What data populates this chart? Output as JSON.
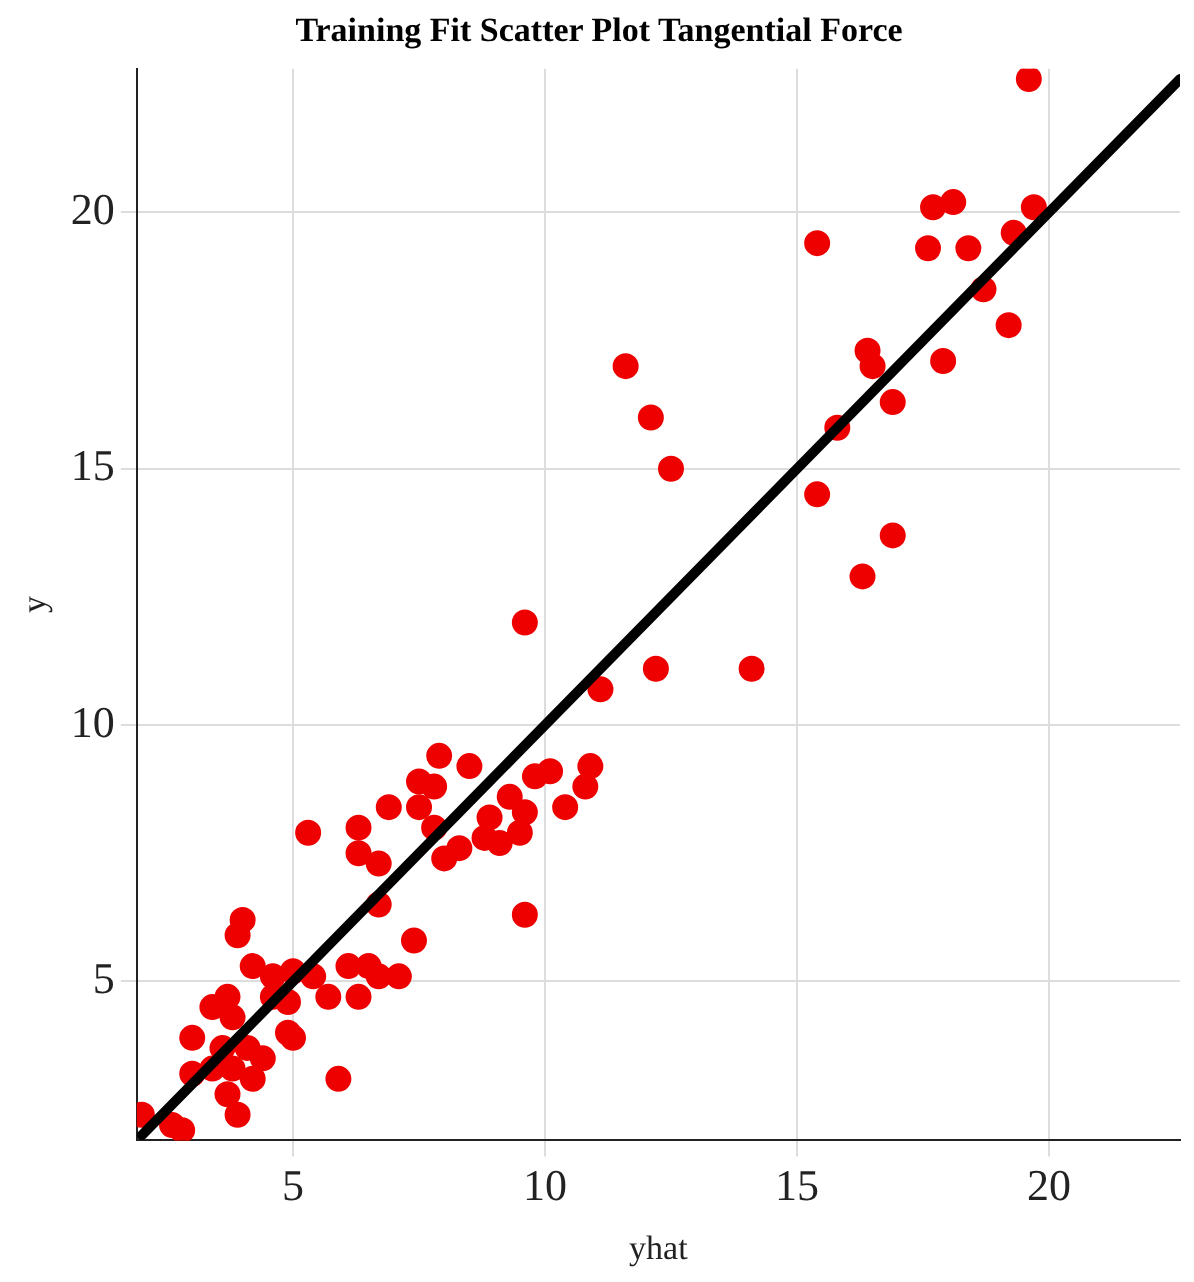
{
  "chart_data": {
    "type": "scatter",
    "title": "Training Fit Scatter Plot Tangential Force",
    "xlabel": "yhat",
    "ylabel": "y",
    "xlim": [
      1.9,
      22.6
    ],
    "ylim": [
      1.9,
      22.8
    ],
    "xticks": [
      5,
      10,
      15,
      20
    ],
    "yticks": [
      5,
      10,
      15,
      20
    ],
    "grid": true,
    "legend": false,
    "series": [
      {
        "color": "#ee0000",
        "marker": "circle",
        "x": [
          19.6,
          17.7,
          18.1,
          19.7,
          15.4,
          17.6,
          18.4,
          19.3,
          18.7,
          19.2,
          16.4,
          16.5,
          17.9,
          16.9,
          15.8,
          15.4,
          16.9,
          16.3,
          11.6,
          12.1,
          12.5,
          9.6,
          11.1,
          12.2,
          14.1,
          7.9,
          8.5,
          7.5,
          7.8,
          6.9,
          6.3,
          5.3,
          7.5,
          7.8,
          6.3,
          6.7,
          6.7,
          8.0,
          8.3,
          8.8,
          9.1,
          9.3,
          9.6,
          9.5,
          8.9,
          9.8,
          10.1,
          10.4,
          10.9,
          10.8,
          9.6,
          7.4,
          4.0,
          3.9,
          4.2,
          4.6,
          5.0,
          5.4,
          5.7,
          4.9,
          4.6,
          6.1,
          6.3,
          6.5,
          6.7,
          7.1,
          3.7,
          3.4,
          3.8,
          3.0,
          4.9,
          5.0,
          3.6,
          4.1,
          4.4,
          3.4,
          3.8,
          4.2,
          3.0,
          3.7,
          3.9,
          5.9,
          2.0,
          2.6,
          2.8
        ],
        "values": [
          22.6,
          20.1,
          20.2,
          20.1,
          19.4,
          19.3,
          19.3,
          19.6,
          18.5,
          17.8,
          17.3,
          17.0,
          17.1,
          16.3,
          15.8,
          14.5,
          13.7,
          12.9,
          17.0,
          16.0,
          15.0,
          12.0,
          10.7,
          11.1,
          11.1,
          9.4,
          9.2,
          8.9,
          8.8,
          8.4,
          8.0,
          7.9,
          8.4,
          8.0,
          7.5,
          7.3,
          6.5,
          7.4,
          7.6,
          7.8,
          7.7,
          8.6,
          8.3,
          7.9,
          8.2,
          9.0,
          9.1,
          8.4,
          9.2,
          8.8,
          6.3,
          5.8,
          6.2,
          5.9,
          5.3,
          5.1,
          5.2,
          5.1,
          4.7,
          4.6,
          4.7,
          5.3,
          4.7,
          5.3,
          5.1,
          5.1,
          4.7,
          4.5,
          4.3,
          3.9,
          4.0,
          3.9,
          3.7,
          3.7,
          3.5,
          3.3,
          3.3,
          3.1,
          3.2,
          2.8,
          2.4,
          3.1,
          2.4,
          2.2,
          2.1
        ]
      },
      {
        "type": "line",
        "color": "#000000",
        "marker": "none",
        "line_style": "solid",
        "x": [
          2,
          22.6
        ],
        "values": [
          2,
          22.6
        ]
      }
    ]
  }
}
